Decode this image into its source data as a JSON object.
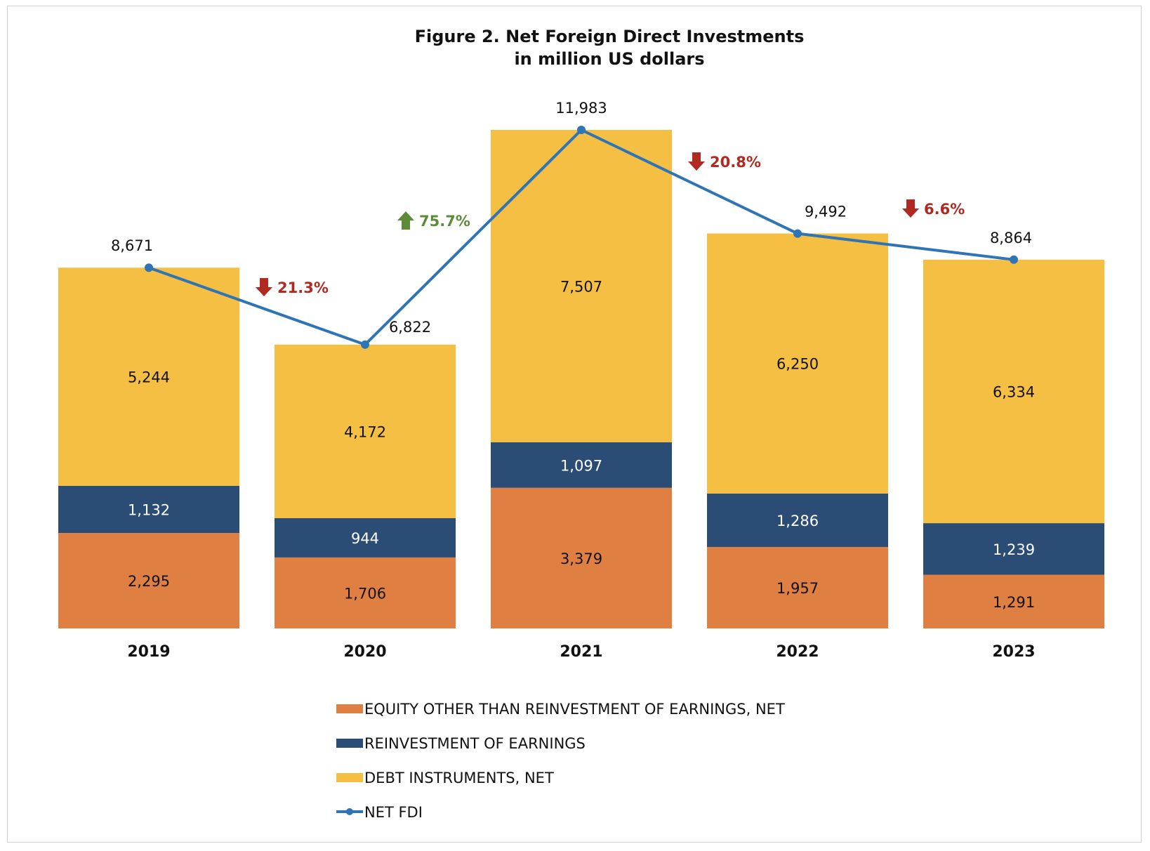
{
  "chart_data": {
    "type": "bar",
    "stacked": true,
    "title": "Figure 2. Net Foreign Direct Investments",
    "subtitle": "in million US dollars",
    "categories": [
      "2019",
      "2020",
      "2021",
      "2022",
      "2023"
    ],
    "ylim": [
      0,
      12500
    ],
    "grid": false,
    "legend_position": "bottom",
    "series": [
      {
        "name": "EQUITY OTHER THAN REINVESTMENT OF EARNINGS, NET",
        "type": "bar",
        "values": [
          2295,
          1706,
          3379,
          1957,
          1291
        ],
        "labels": [
          "2,295",
          "1,706",
          "3,379",
          "1,957",
          "1,291"
        ],
        "color": "#E07F42",
        "label_color": "#111111"
      },
      {
        "name": "REINVESTMENT OF EARNINGS",
        "type": "bar",
        "values": [
          1132,
          944,
          1097,
          1286,
          1239
        ],
        "labels": [
          "1,132",
          "944",
          "1,097",
          "1,286",
          "1,239"
        ],
        "color": "#2B4C74",
        "label_color": "#FFFFFF"
      },
      {
        "name": "DEBT INSTRUMENTS, NET",
        "type": "bar",
        "values": [
          5244,
          4172,
          7507,
          6250,
          6334
        ],
        "labels": [
          "5,244",
          "4,172",
          "7,507",
          "6,250",
          "6,334"
        ],
        "color": "#F4BF42",
        "label_color": "#111111"
      },
      {
        "name": "NET FDI",
        "type": "line",
        "values": [
          8671,
          6822,
          11983,
          9492,
          8864
        ],
        "labels": [
          "8,671",
          "6,822",
          "11,983",
          "9,492",
          "8,864"
        ],
        "color": "#2F74B5"
      }
    ],
    "annotations": [
      {
        "text": "21.3%",
        "direction": "down",
        "between": [
          "2019",
          "2020"
        ],
        "color": "#B02A22"
      },
      {
        "text": "75.7%",
        "direction": "up",
        "between": [
          "2020",
          "2021"
        ],
        "color": "#5E8B3A"
      },
      {
        "text": "20.8%",
        "direction": "down",
        "between": [
          "2021",
          "2022"
        ],
        "color": "#B02A22"
      },
      {
        "text": "6.6%",
        "direction": "down",
        "between": [
          "2022",
          "2023"
        ],
        "color": "#B02A22"
      }
    ]
  }
}
